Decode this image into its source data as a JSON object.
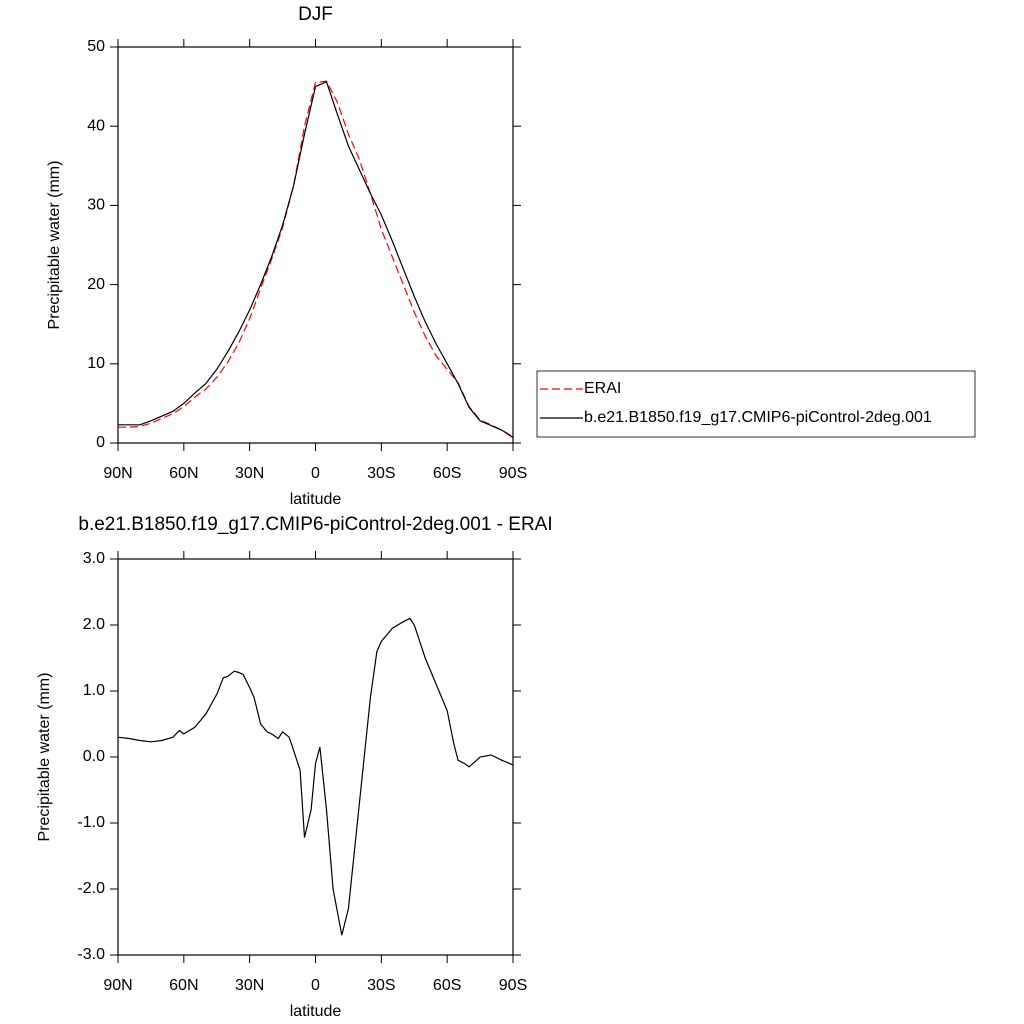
{
  "chart_data": [
    {
      "type": "line",
      "title": "DJF",
      "xlabel": "latitude",
      "ylabel": "Precipitable water (mm)",
      "x": [
        90,
        85,
        80,
        75,
        70,
        65,
        60,
        55,
        50,
        45,
        40,
        35,
        30,
        25,
        20,
        15,
        10,
        5,
        0,
        -5,
        -10,
        -15,
        -20,
        -25,
        -30,
        -35,
        -40,
        -45,
        -50,
        -55,
        -60,
        -65,
        -70,
        -75,
        -80,
        -85,
        -90
      ],
      "series": [
        {
          "name": "ERAI",
          "color": "#ff0000",
          "line_style": "dashed",
          "values": [
            2.0,
            2.0,
            2.1,
            2.5,
            3.1,
            3.7,
            4.6,
            5.8,
            6.8,
            8.3,
            10.2,
            12.6,
            15.7,
            19.5,
            23.2,
            27.2,
            32.5,
            40.0,
            45.5,
            45.7,
            43.0,
            39.0,
            35.8,
            31.5,
            27.0,
            23.5,
            20.0,
            16.5,
            13.5,
            11.0,
            9.3,
            7.6,
            4.6,
            2.9,
            2.3,
            1.6,
            0.8
          ]
        },
        {
          "name": "b.e21.B1850.f19_g17.CMIP6-piControl-2deg.001",
          "color": "#000000",
          "line_style": "solid",
          "values": [
            2.3,
            2.3,
            2.3,
            2.8,
            3.4,
            4.0,
            5.0,
            6.3,
            7.5,
            9.3,
            11.5,
            14.0,
            16.8,
            20.0,
            23.5,
            27.5,
            32.5,
            39.0,
            45.0,
            45.6,
            41.5,
            37.5,
            34.5,
            31.5,
            28.8,
            25.5,
            22.0,
            18.5,
            15.3,
            12.5,
            10.0,
            7.5,
            4.5,
            2.8,
            2.2,
            1.6,
            0.7
          ]
        }
      ],
      "xlim": [
        90,
        -90
      ],
      "xticks": [
        {
          "value": 90,
          "label": "90N"
        },
        {
          "value": 60,
          "label": "60N"
        },
        {
          "value": 30,
          "label": "30N"
        },
        0,
        {
          "value": -30,
          "label": "30S"
        },
        {
          "value": -60,
          "label": "60S"
        },
        {
          "value": -90,
          "label": "90S"
        }
      ],
      "ylim": [
        0,
        50
      ],
      "yticks": [
        0,
        10,
        20,
        30,
        40,
        50
      ],
      "legend": "right"
    },
    {
      "type": "line",
      "title": "b.e21.B1850.f19_g17.CMIP6-piControl-2deg.001 - ERAI",
      "xlabel": "latitude",
      "ylabel": "Precipitable water (mm)",
      "x": [
        90,
        85,
        80,
        75,
        70,
        65,
        62,
        60,
        55,
        50,
        45,
        42,
        40,
        37,
        35,
        33,
        30,
        28,
        25,
        22,
        20,
        17,
        15,
        12,
        10,
        7,
        5,
        2,
        0,
        -2,
        -5,
        -8,
        -12,
        -15,
        -20,
        -25,
        -28,
        -30,
        -35,
        -40,
        -43,
        -45,
        -50,
        -55,
        -60,
        -63,
        -65,
        -68,
        -70,
        -75,
        -80,
        -85,
        -90
      ],
      "values": [
        0.3,
        0.28,
        0.25,
        0.23,
        0.25,
        0.3,
        0.4,
        0.35,
        0.45,
        0.65,
        0.95,
        1.2,
        1.22,
        1.3,
        1.28,
        1.25,
        1.05,
        0.9,
        0.5,
        0.38,
        0.35,
        0.28,
        0.38,
        0.3,
        0.1,
        -0.2,
        -1.22,
        -0.8,
        -0.1,
        0.15,
        -0.8,
        -2.0,
        -2.7,
        -2.3,
        -0.7,
        0.9,
        1.6,
        1.75,
        1.95,
        2.05,
        2.1,
        2.0,
        1.5,
        1.1,
        0.7,
        0.2,
        -0.05,
        -0.1,
        -0.15,
        0.0,
        0.03,
        -0.05,
        -0.12
      ],
      "color": "#000000",
      "xlim": [
        90,
        -90
      ],
      "xticks": [
        {
          "value": 90,
          "label": "90N"
        },
        {
          "value": 60,
          "label": "60N"
        },
        {
          "value": 30,
          "label": "30N"
        },
        0,
        {
          "value": -30,
          "label": "30S"
        },
        {
          "value": -60,
          "label": "60S"
        },
        {
          "value": -90,
          "label": "90S"
        }
      ],
      "ylim": [
        -3,
        3
      ],
      "yticks": [
        {
          "value": -3,
          "label": "-3.0"
        },
        {
          "value": -2,
          "label": "-2.0"
        },
        {
          "value": -1,
          "label": "-1.0"
        },
        {
          "value": 0,
          "label": "0.0"
        },
        {
          "value": 1,
          "label": "1.0"
        },
        {
          "value": 2,
          "label": "2.0"
        },
        {
          "value": 3,
          "label": "3.0"
        }
      ]
    }
  ]
}
